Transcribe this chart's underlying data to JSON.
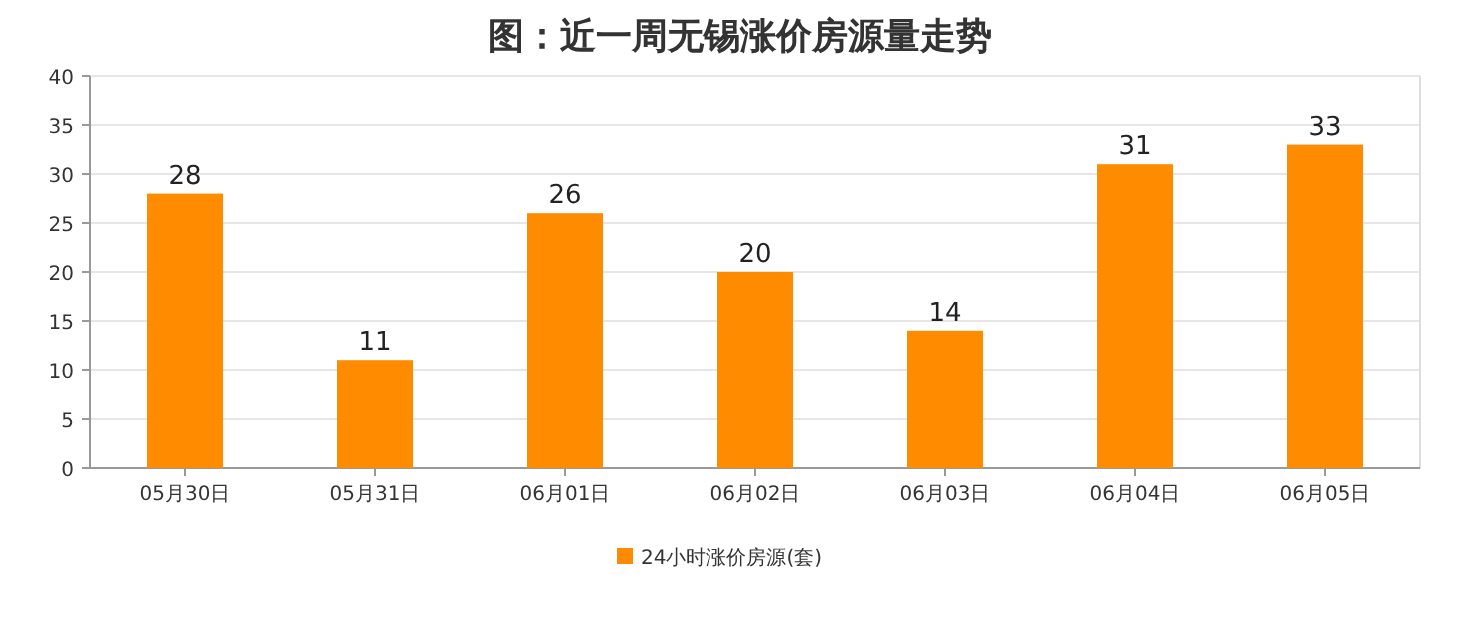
{
  "chart_data": {
    "type": "bar",
    "title": "图：近一周无锡涨价房源量走势",
    "categories": [
      "05月30日",
      "05月31日",
      "06月01日",
      "06月02日",
      "06月03日",
      "06月04日",
      "06月05日"
    ],
    "series": [
      {
        "name": "24小时涨价房源(套)",
        "color": "#ff8c00",
        "values": [
          28,
          11,
          26,
          20,
          14,
          31,
          33
        ]
      }
    ],
    "ylim": [
      0,
      40
    ],
    "yticks": [
      0,
      5,
      10,
      15,
      20,
      25,
      30,
      35,
      40
    ],
    "grid": "y",
    "legend": "bottom",
    "data_labels": true
  }
}
